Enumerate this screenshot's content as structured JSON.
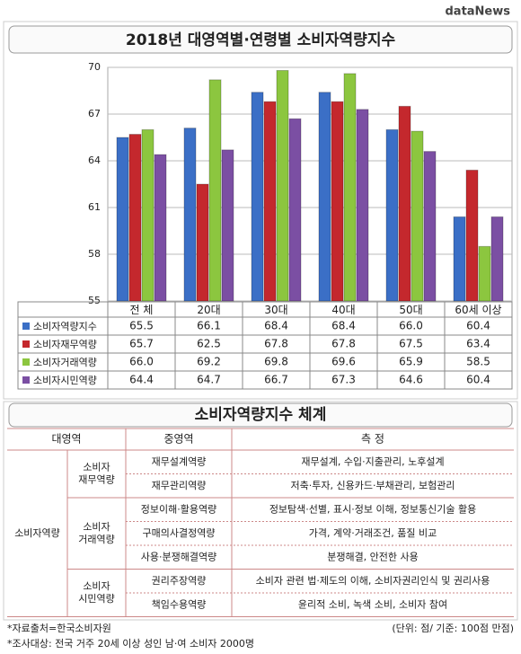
{
  "header": {
    "logo": "dataNews"
  },
  "chart_data": {
    "type": "bar",
    "title": "2018년 대영역별·연령별 소비자역량지수",
    "categories": [
      "전 체",
      "20대",
      "30대",
      "40대",
      "50대",
      "60세 이상"
    ],
    "series": [
      {
        "name": "소비자역량지수",
        "color": "#3b6fc6",
        "values": [
          65.5,
          66.1,
          68.4,
          68.4,
          66.0,
          60.4
        ],
        "value_labels": [
          "65.5",
          "66.1",
          "68.4",
          "68.4",
          "66.0",
          "60.4"
        ]
      },
      {
        "name": "소비자재무역량",
        "color": "#c4282d",
        "values": [
          65.7,
          62.5,
          67.8,
          67.8,
          67.5,
          63.4
        ],
        "value_labels": [
          "65.7",
          "62.5",
          "67.8",
          "67.8",
          "67.5",
          "63.4"
        ]
      },
      {
        "name": "소비자거래역량",
        "color": "#8cc63f",
        "values": [
          66.0,
          69.2,
          69.8,
          69.6,
          65.9,
          58.5
        ],
        "value_labels": [
          "66.0",
          "69.2",
          "69.8",
          "69.6",
          "65.9",
          "58.5"
        ]
      },
      {
        "name": "소비자시민역량",
        "color": "#7b4fa3",
        "values": [
          64.4,
          64.7,
          66.7,
          67.3,
          64.6,
          60.4
        ],
        "value_labels": [
          "64.4",
          "64.7",
          "66.7",
          "67.3",
          "64.6",
          "60.4"
        ]
      }
    ],
    "ylim": [
      55,
      70
    ],
    "yticks": [
      55,
      58,
      61,
      64,
      67,
      70
    ],
    "grid": true
  },
  "framework": {
    "title": "소비자역량지수 체계",
    "columns": [
      "대영역",
      "중영역",
      "측 정"
    ],
    "domain": "소비자역량",
    "groups": [
      {
        "label": [
          "소비자",
          "재무역량"
        ],
        "rows": [
          [
            "재무설계역량",
            "재무설계, 수입·지출관리, 노후설계"
          ],
          [
            "재무관리역량",
            "저축·투자, 신용카드·부채관리, 보험관리"
          ]
        ]
      },
      {
        "label": [
          "소비자",
          "거래역량"
        ],
        "rows": [
          [
            "정보이해·활용역량",
            "정보탐색·선별, 표시·정보 이해, 정보통신기술 활용"
          ],
          [
            "구매의사결정역량",
            "가격, 계약·거래조건, 품질 비교"
          ],
          [
            "사용·분쟁해결역량",
            "분쟁해결, 안전한 사용"
          ]
        ]
      },
      {
        "label": [
          "소비자",
          "시민역량"
        ],
        "rows": [
          [
            "권리주장역량",
            "소비자 관련 법·제도의 이해, 소비자권리인식 및 권리사용"
          ],
          [
            "책임수용역량",
            "윤리적 소비, 녹색 소비, 소비자 참여"
          ]
        ]
      }
    ]
  },
  "footer": {
    "source": "*자료출처=한국소비자원",
    "sample": "*조사대상: 전국 거주 20세 이상 성인 남·여 소비자 2000명",
    "unit": "(단위: 점/ 기준: 100점 만점)"
  }
}
